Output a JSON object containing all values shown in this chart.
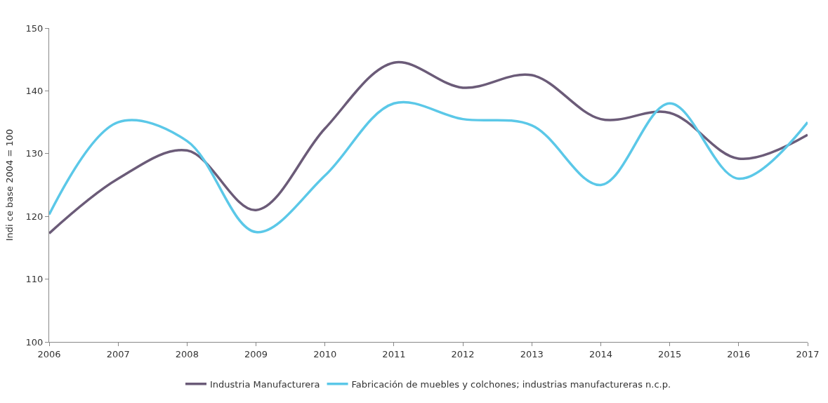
{
  "chart_data": {
    "type": "line",
    "ylabel": "Indi ce base 2004 = 100",
    "x": [
      2006,
      2007,
      2008,
      2009,
      2010,
      2011,
      2012,
      2013,
      2014,
      2015,
      2016,
      2017
    ],
    "xlim": [
      2006,
      2017
    ],
    "xticks": [
      2006,
      2007,
      2008,
      2009,
      2010,
      2011,
      2012,
      2013,
      2014,
      2015,
      2016,
      2017
    ],
    "ylim": [
      100,
      150
    ],
    "yticks": [
      100,
      110,
      120,
      130,
      140,
      150
    ],
    "series": [
      {
        "name": "Industria Manufacturera",
        "color": "#6b5b78",
        "values": [
          117.3,
          126,
          130.5,
          121,
          134,
          144.5,
          140.5,
          142.5,
          135.5,
          136.5,
          129.2,
          133
        ]
      },
      {
        "name": "Fabricación de muebles y colchones; industrias manufactureras n.c.p.",
        "color": "#5bc8e8",
        "values": [
          120.3,
          135,
          132,
          117.5,
          126.5,
          138,
          135.5,
          134.5,
          125,
          138,
          126,
          135
        ]
      }
    ],
    "legend": "bottom",
    "marker": "none",
    "line_style": "solid"
  }
}
